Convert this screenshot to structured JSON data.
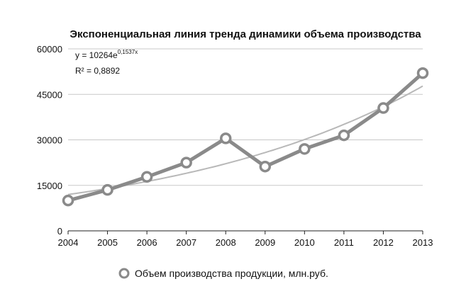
{
  "chart_data": {
    "type": "line",
    "title": "Экспоненциальная линия тренда динамики объема производства",
    "x": [
      "2004",
      "2005",
      "2006",
      "2007",
      "2008",
      "2009",
      "2010",
      "2011",
      "2012",
      "2013"
    ],
    "series": [
      {
        "name": "Объем производства продукции, млн.руб.",
        "values": [
          10000,
          13500,
          17800,
          22500,
          30500,
          21200,
          27000,
          31500,
          40500,
          52000
        ],
        "color": "#8a8a8a"
      }
    ],
    "trendline": {
      "type": "exponential",
      "a": 10264,
      "b": 0.1537,
      "color": "#b8b8b8",
      "equation_base": "y = 10264e",
      "equation_exp": "0,1537x",
      "r2_label": "R² = 0,8892"
    },
    "ylim": [
      0,
      60000
    ],
    "yticks": [
      "0",
      "15000",
      "30000",
      "45000",
      "60000"
    ],
    "grid": true,
    "legend": "bottom"
  }
}
